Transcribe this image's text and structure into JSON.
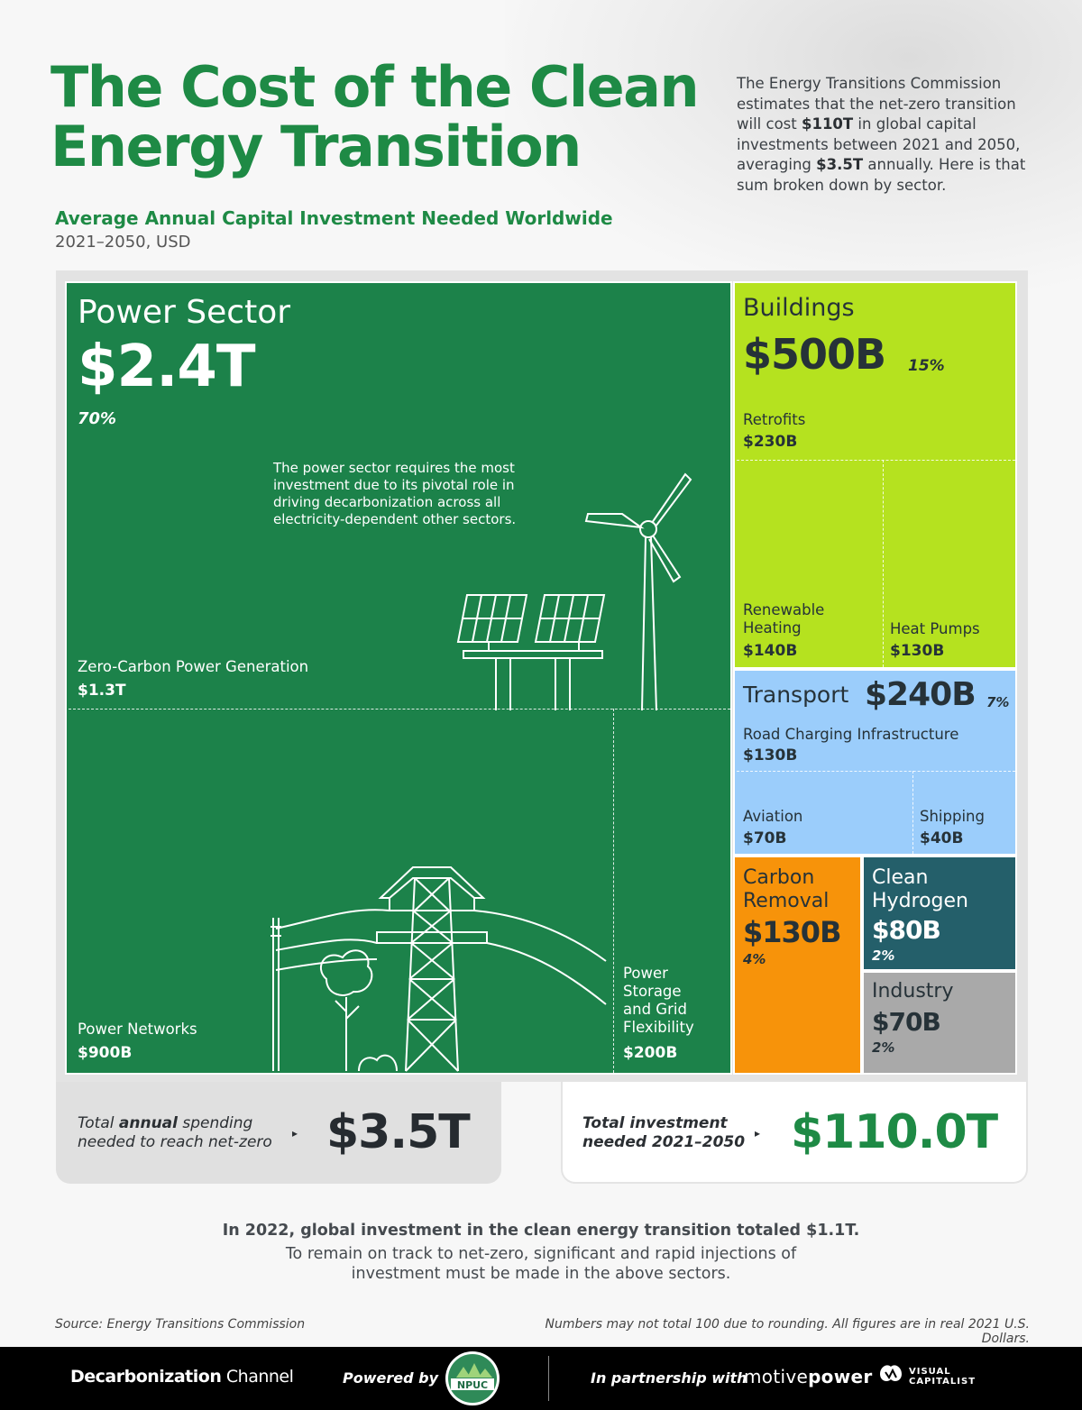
{
  "title": "The Cost of the Clean Energy Transition",
  "intro": {
    "p1": "The Energy Transitions Commission estimates that the net-zero transition will cost ",
    "b1": "$110T",
    "p2": " in global capital investments between 2021 and 2050, averaging ",
    "b2": "$3.5T",
    "p3": " annually. Here is that sum broken down by sector."
  },
  "subtitle": "Average Annual Capital Investment Needed Worldwide",
  "subtitle_units": "2021–2050, USD",
  "colors": {
    "power": "#1c824a",
    "buildings": "#b5e21f",
    "transport": "#9bcdfb",
    "carbon_removal": "#f7930a",
    "clean_hydrogen": "#245f6a",
    "industry": "#a9a9a9",
    "title_green": "#1e8a45"
  },
  "chart_data": {
    "type": "treemap",
    "title": "Average Annual Capital Investment Needed Worldwide",
    "units": "USD per year, 2021–2050",
    "sectors": [
      {
        "name": "Power Sector",
        "value_label": "$2.4T",
        "value_billions": 2400,
        "share_label": "70%",
        "note": "The power sector requires the most investment due to its pivotal role in driving decarbonization across all electricity-dependent other sectors.",
        "subsectors": [
          {
            "name": "Zero-Carbon Power Generation",
            "value_label": "$1.3T",
            "value_billions": 1300
          },
          {
            "name": "Power Networks",
            "value_label": "$900B",
            "value_billions": 900
          },
          {
            "name": "Power Storage and Grid Flexibility",
            "value_label": "$200B",
            "value_billions": 200
          }
        ]
      },
      {
        "name": "Buildings",
        "value_label": "$500B",
        "value_billions": 500,
        "share_label": "15%",
        "subsectors": [
          {
            "name": "Retrofits",
            "value_label": "$230B",
            "value_billions": 230
          },
          {
            "name": "Renewable Heating",
            "value_label": "$140B",
            "value_billions": 140
          },
          {
            "name": "Heat Pumps",
            "value_label": "$130B",
            "value_billions": 130
          }
        ]
      },
      {
        "name": "Transport",
        "value_label": "$240B",
        "value_billions": 240,
        "share_label": "7%",
        "subsectors": [
          {
            "name": "Road Charging Infrastructure",
            "value_label": "$130B",
            "value_billions": 130
          },
          {
            "name": "Aviation",
            "value_label": "$70B",
            "value_billions": 70
          },
          {
            "name": "Shipping",
            "value_label": "$40B",
            "value_billions": 40
          }
        ]
      },
      {
        "name": "Carbon Removal",
        "value_label": "$130B",
        "value_billions": 130,
        "share_label": "4%"
      },
      {
        "name": "Clean Hydrogen",
        "value_label": "$80B",
        "value_billions": 80,
        "share_label": "2%"
      },
      {
        "name": "Industry",
        "value_label": "$70B",
        "value_billions": 70,
        "share_label": "2%"
      }
    ]
  },
  "labels": {
    "power": "Power Sector",
    "power_value": "$2.4T",
    "power_pct": "70%",
    "power_note": "The power sector requires the most investment due to its pivotal role in driving decarbonization across all electricity-dependent other sectors.",
    "zero_carbon": "Zero-Carbon Power Generation",
    "zero_carbon_value": "$1.3T",
    "networks": "Power Networks",
    "networks_value": "$900B",
    "storage": "Power Storage and Grid Flexibility",
    "storage_value": "$200B",
    "buildings": "Buildings",
    "buildings_value": "$500B",
    "buildings_pct": "15%",
    "retrofits": "Retrofits",
    "retrofits_value": "$230B",
    "renewable_heating": "Renewable Heating",
    "renewable_heating_value": "$140B",
    "heat_pumps": "Heat Pumps",
    "heat_pumps_value": "$130B",
    "transport": "Transport",
    "transport_value": "$240B",
    "transport_pct": "7%",
    "road_charging": "Road Charging Infrastructure",
    "road_charging_value": "$130B",
    "aviation": "Aviation",
    "aviation_value": "$70B",
    "shipping": "Shipping",
    "shipping_value": "$40B",
    "carbon_removal": "Carbon Removal",
    "carbon_removal_value": "$130B",
    "carbon_removal_pct": "4%",
    "clean_hydrogen": "Clean Hydrogen",
    "clean_hydrogen_value": "$80B",
    "clean_hydrogen_pct": "2%",
    "industry": "Industry",
    "industry_value": "$70B",
    "industry_pct": "2%"
  },
  "totals": {
    "annual_pre": "Total ",
    "annual_bold": "annual",
    "annual_post": " spending",
    "annual_line2": "needed to reach net-zero",
    "annual_value": "$3.5T",
    "total_line1": "Total investment",
    "total_line2_pre": "needed ",
    "total_line2_bold": "2021–2050",
    "total_value": "$110.0T",
    "arrow": "▸"
  },
  "notes": {
    "line1": "In 2022, global investment in the clean energy transition totaled $1.1T.",
    "line2": "To remain on track to net-zero, significant and rapid injections of investment must be made in the above sectors."
  },
  "source": "Source: Energy Transitions Commission",
  "disclaimer": "Numbers may not total 100 due to rounding.  All figures are in real 2021 U.S. Dollars.",
  "footer": {
    "brand_bold": "Decarbonization",
    "brand_regular": " Channel",
    "powered_by": "Powered by",
    "npuc": "NPUC",
    "partnership": "In partnership with",
    "motive": "motive",
    "power": "power",
    "vc_line1": "VISUAL",
    "vc_line2": "CAPITALIST"
  }
}
